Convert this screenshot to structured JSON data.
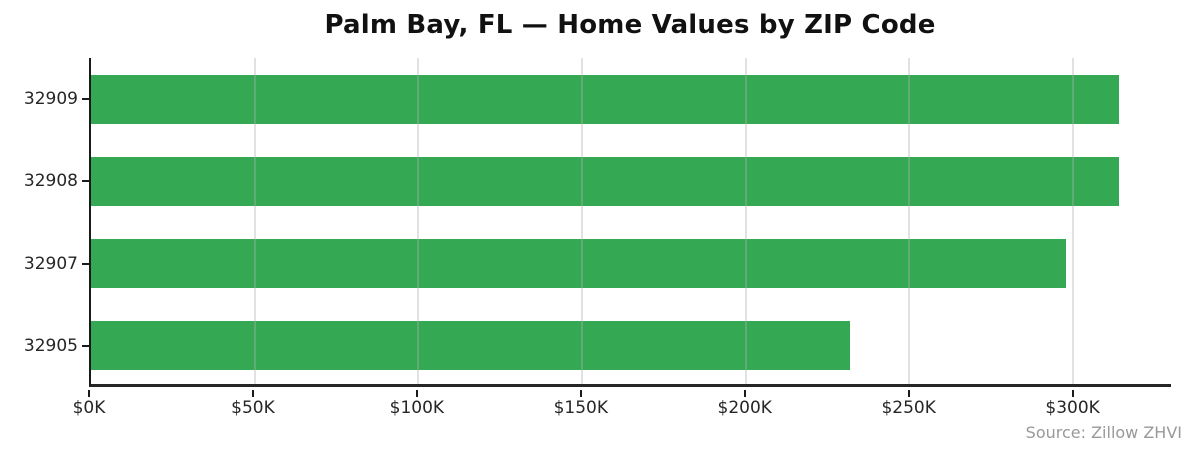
{
  "source_note": "Source: Zillow ZHVI",
  "colors": {
    "bar": "#34a853",
    "axis": "#1a1a1a",
    "grid": "#b0b0b0",
    "title_text": "#111111",
    "tick_text": "#262626",
    "source_text": "#999999"
  },
  "chart_data": {
    "type": "bar",
    "orientation": "horizontal",
    "title": "Palm Bay, FL — Home Values by ZIP Code",
    "categories": [
      "32909",
      "32908",
      "32907",
      "32905"
    ],
    "values": [
      314000,
      314000,
      298000,
      232000
    ],
    "xlabel": "",
    "ylabel": "",
    "xlim": [
      0,
      330000
    ],
    "xticks": [
      0,
      50000,
      100000,
      150000,
      200000,
      250000,
      300000
    ],
    "xtick_labels": [
      "$0K",
      "$50K",
      "$100K",
      "$150K",
      "$200K",
      "$250K",
      "$300K"
    ],
    "grid": "vertical, drawn over bars",
    "legend": false
  }
}
